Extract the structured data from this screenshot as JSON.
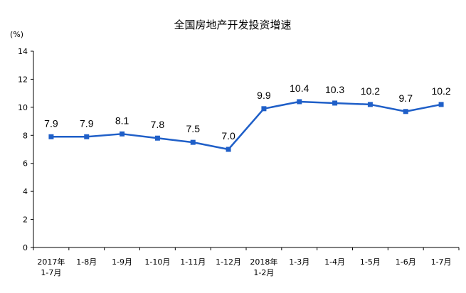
{
  "chart_data": {
    "type": "line",
    "title": "全国房地产开发投资增速",
    "ylabel": "(%)",
    "xlabel": "",
    "ylim": [
      0,
      14
    ],
    "yticks": [
      0,
      2,
      4,
      6,
      8,
      10,
      12,
      14
    ],
    "grid": false,
    "categories": [
      [
        "2017年",
        "1-7月"
      ],
      [
        "1-8月"
      ],
      [
        "1-9月"
      ],
      [
        "1-10月"
      ],
      [
        "1-11月"
      ],
      [
        "1-12月"
      ],
      [
        "2018年",
        "1-2月"
      ],
      [
        "1-3月"
      ],
      [
        "1-4月"
      ],
      [
        "1-5月"
      ],
      [
        "1-6月"
      ],
      [
        "1-7月"
      ]
    ],
    "series": [
      {
        "values": [
          7.9,
          7.9,
          8.1,
          7.8,
          7.5,
          7.0,
          9.9,
          10.4,
          10.3,
          10.2,
          9.7,
          10.2
        ],
        "data_labels": [
          "7.9",
          "7.9",
          "8.1",
          "7.8",
          "7.5",
          "7.0",
          "9.9",
          "10.4",
          "10.3",
          "10.2",
          "9.7",
          "10.2"
        ],
        "color": "#1F5FC8"
      }
    ]
  }
}
